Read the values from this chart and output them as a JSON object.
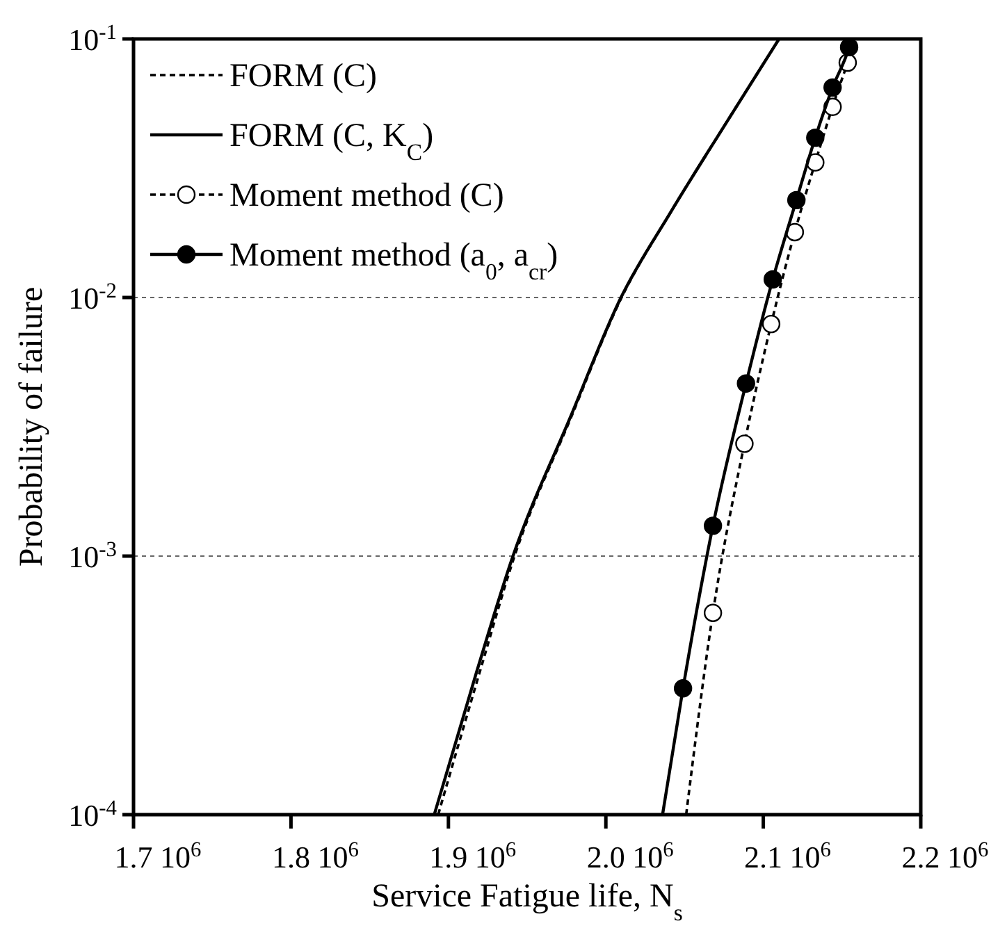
{
  "chart_data": {
    "type": "line",
    "xlabel": "Service Fatigue life, N$_{s}$",
    "ylabel": "Probability of failure",
    "log": "y",
    "grid": "y",
    "legend": "top left",
    "xlim": [
      1.7,
      2.2
    ],
    "ylim": [
      0.0001,
      0.1
    ],
    "xticks": [
      {
        "value": 1.7,
        "label": "1.7"
      },
      {
        "value": 1.8,
        "label": "1.8"
      },
      {
        "value": 1.9,
        "label": "1.9"
      },
      {
        "value": 2.0,
        "label": "2.0"
      },
      {
        "value": 2.1,
        "label": "2.1"
      },
      {
        "value": 2.2,
        "label": "2.2"
      }
    ],
    "annotations": [
      "10$^{6}$",
      "10$^{6}$",
      "10$^{6}$",
      "10$^{6}$",
      "10$^{6}$",
      "10$^{6}$"
    ],
    "yticks": [
      {
        "value": 0.0001,
        "label": "10$^{-4}$"
      },
      {
        "value": 0.001,
        "label": "10$^{-3}$"
      },
      {
        "value": 0.01,
        "label": "10$^{-2}$"
      },
      {
        "value": 0.1,
        "label": "10$^{-1}$"
      }
    ],
    "series": [
      {
        "name": "FORM (C)",
        "color": "#000000",
        "line_style": "dashed",
        "marker": "none",
        "x": [
          1.8935,
          1.92,
          1.942,
          1.978,
          2.01,
          2.041,
          2.0755,
          2.11
        ],
        "values": [
          0.0001,
          0.000358,
          0.001,
          0.00345,
          0.01,
          0.0213,
          0.0464,
          0.1
        ]
      },
      {
        "name": "FORM (C, K$_{C}$)",
        "color": "#000000",
        "line_style": "solid",
        "marker": "none",
        "x": [
          1.891,
          1.918,
          1.941,
          1.9775,
          2.0096,
          2.041,
          2.0755,
          2.11
        ],
        "values": [
          0.0001,
          0.000358,
          0.001,
          0.00345,
          0.01,
          0.0213,
          0.0464,
          0.1
        ]
      },
      {
        "name": "Moment method (C)",
        "color": "#000000",
        "colors": [
          null,
          "#ffffff",
          "#ffffff",
          "#ffffff",
          "#ffffff",
          "#ffffff",
          "#ffffff",
          "#ffffff",
          null
        ],
        "line_style": "dashed",
        "marker": "circle",
        "x": [
          2.051,
          2.068,
          2.088,
          2.105,
          2.12,
          2.133,
          2.144,
          2.1536,
          2.159
        ],
        "values": [
          0.0001,
          0.000603,
          0.00272,
          0.0079,
          0.0179,
          0.0333,
          0.0546,
          0.081,
          0.1
        ]
      },
      {
        "name": "Moment method (a$_{0}$, a$_{cr}$)",
        "color": "#000000",
        "colors": [
          null,
          "#000000",
          "#000000",
          "#000000",
          "#000000",
          "#000000",
          "#000000",
          "#000000",
          "#000000",
          null
        ],
        "line_style": "solid",
        "marker": "circle",
        "x": [
          2.036,
          2.049,
          2.068,
          2.089,
          2.106,
          2.121,
          2.133,
          2.144,
          2.1545,
          2.156
        ],
        "values": [
          0.0001,
          0.000308,
          0.00131,
          0.00465,
          0.01175,
          0.0238,
          0.0415,
          0.0649,
          0.0929,
          0.1
        ]
      }
    ]
  }
}
